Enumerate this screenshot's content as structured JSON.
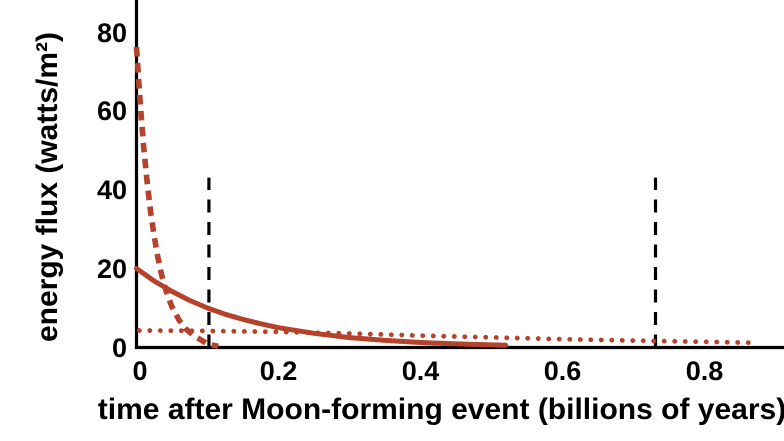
{
  "colors": {
    "curve_red": "#b5432b",
    "axis_black": "#000000",
    "background": "#ffffff"
  },
  "chart_data": {
    "type": "line",
    "title": "",
    "xlabel": "time after Moon-forming event (billions of years)",
    "ylabel": "energy flux (watts/m²)",
    "xlim": [
      0,
      0.91
    ],
    "ylim": [
      0,
      88
    ],
    "grid": false,
    "legend": "none",
    "xtick_values": [
      0,
      0.2,
      0.4,
      0.6,
      0.8
    ],
    "xtick_labels": [
      "0",
      "0.2",
      "0.4",
      "0.6",
      "0.8"
    ],
    "ytick_values": [
      0,
      20,
      40,
      60,
      80
    ],
    "ytick_labels": [
      "0",
      "20",
      "40",
      "60",
      "80"
    ],
    "series": [
      {
        "name": "fast-decay-dashed",
        "style": "dashed",
        "color": "#b5432b",
        "description": "steep exponential decay, ~76 W/m2 at t=0, reaches ~0 by t=0.11",
        "points": [
          [
            0,
            76
          ],
          [
            0.005,
            62.2
          ],
          [
            0.01,
            50.9
          ],
          [
            0.015,
            41.7
          ],
          [
            0.02,
            34.1
          ],
          [
            0.025,
            28.0
          ],
          [
            0.03,
            22.9
          ],
          [
            0.035,
            18.7
          ],
          [
            0.04,
            15.3
          ],
          [
            0.045,
            12.6
          ],
          [
            0.05,
            10.3
          ],
          [
            0.06,
            6.9
          ],
          [
            0.07,
            4.6
          ],
          [
            0.08,
            3.1
          ],
          [
            0.09,
            2.0
          ],
          [
            0.1,
            0.9
          ],
          [
            0.115,
            0.3
          ]
        ]
      },
      {
        "name": "slow-decay-solid",
        "style": "solid",
        "color": "#b5432b",
        "description": "exponential decay, 20 W/m2 at t=0, near zero by t~0.5",
        "points": [
          [
            0,
            20
          ],
          [
            0.025,
            16.8
          ],
          [
            0.05,
            14.2
          ],
          [
            0.075,
            11.9
          ],
          [
            0.1,
            10.0
          ],
          [
            0.125,
            8.4
          ],
          [
            0.15,
            7.1
          ],
          [
            0.175,
            6.0
          ],
          [
            0.2,
            5.0
          ],
          [
            0.25,
            3.6
          ],
          [
            0.3,
            2.5
          ],
          [
            0.35,
            1.8
          ],
          [
            0.4,
            1.26
          ],
          [
            0.45,
            0.9
          ],
          [
            0.5,
            0.65
          ],
          [
            0.52,
            0.58
          ]
        ]
      },
      {
        "name": "low-flat-dotted",
        "style": "dotted",
        "color": "#b5432b",
        "description": "low slowly-decaying flux, ~4.3 W/m2 at t=0 to ~1.2 at t=0.88",
        "points": [
          [
            0.004,
            4.3
          ],
          [
            0.1,
            4.2
          ],
          [
            0.2,
            3.95
          ],
          [
            0.3,
            3.55
          ],
          [
            0.4,
            3.0
          ],
          [
            0.5,
            2.55
          ],
          [
            0.6,
            2.1
          ],
          [
            0.7,
            1.75
          ],
          [
            0.8,
            1.45
          ],
          [
            0.875,
            1.2
          ]
        ]
      }
    ],
    "vlines": [
      {
        "name": "marker-line-1",
        "x": 0.102,
        "y_bottom": 0,
        "y_top": 43,
        "style": "dashed",
        "color": "#000000"
      },
      {
        "name": "marker-line-2",
        "x": 0.731,
        "y_bottom": 0,
        "y_top": 43,
        "style": "dashed",
        "color": "#000000"
      }
    ]
  }
}
